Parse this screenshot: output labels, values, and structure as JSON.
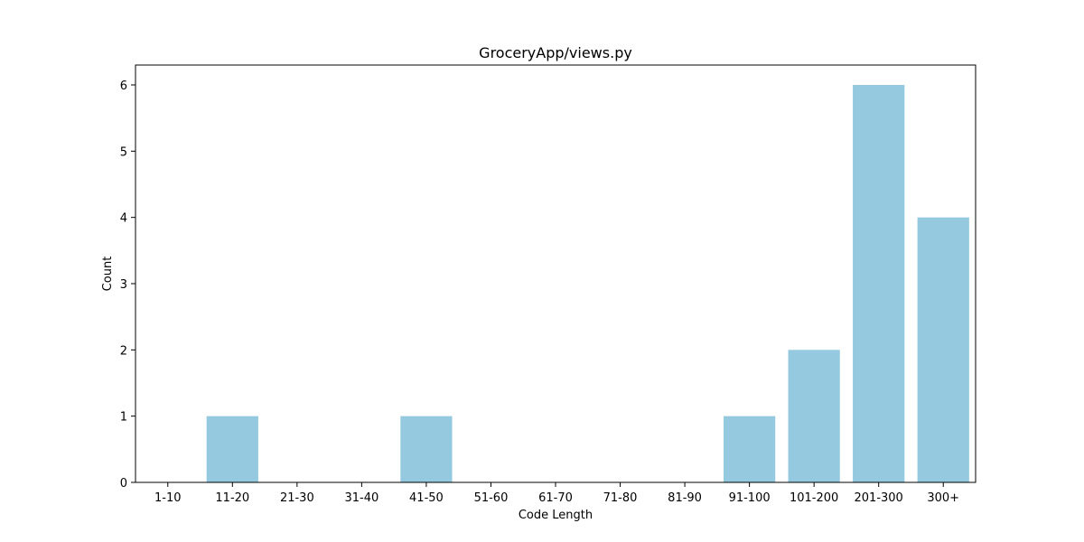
{
  "chart_data": {
    "type": "bar",
    "title": "GroceryApp/views.py",
    "xlabel": "Code Length",
    "ylabel": "Count",
    "categories": [
      "1-10",
      "11-20",
      "21-30",
      "31-40",
      "41-50",
      "51-60",
      "61-70",
      "71-80",
      "81-90",
      "91-100",
      "101-200",
      "201-300",
      "300+"
    ],
    "values": [
      0,
      1,
      0,
      0,
      1,
      0,
      0,
      0,
      0,
      1,
      2,
      6,
      4
    ],
    "ylim": [
      0,
      6.3
    ],
    "yticks": [
      0,
      1,
      2,
      3,
      4,
      5,
      6
    ],
    "bar_color": "#95c9df",
    "grid": false,
    "legend": "none"
  }
}
